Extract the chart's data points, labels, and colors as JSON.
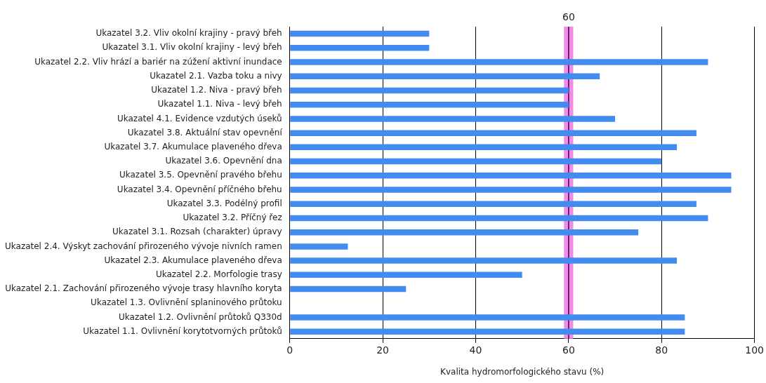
{
  "chart_data": {
    "type": "bar",
    "orientation": "horizontal",
    "xlabel": "Kvalita hydromorfologického stavu (%)",
    "categories": [
      "Ukazatel 3.2. Vliv okolní krajiny - pravý břeh",
      "Ukazatel 3.1. Vliv okolní krajiny - levý břeh",
      "Ukazatel 2.2. Vliv hrází a bariér na zúžení aktivní inundace",
      "Ukazatel 2.1. Vazba toku a nivy",
      "Ukazatel 1.2. Niva - pravý břeh",
      "Ukazatel 1.1. Niva - levý břeh",
      "Ukazatel 4.1. Evidence vzdutých úseků",
      "Ukazatel 3.8. Aktuální stav opevnění",
      "Ukazatel 3.7. Akumulace plaveného dřeva",
      "Ukazatel 3.6. Opevnění dna",
      "Ukazatel 3.5. Opevnění pravého břehu",
      "Ukazatel 3.4. Opevnění příčného břehu",
      "Ukazatel 3.3. Podélný profil",
      "Ukazatel 3.2. Příčný řez",
      "Ukazatel 3.1. Rozsah (charakter) úpravy",
      "Ukazatel 2.4. Výskyt zachování přirozeného vývoje nivních ramen",
      "Ukazatel 2.3. Akumulace plaveného dřeva",
      "Ukazatel 2.2. Morfologie trasy",
      "Ukazatel 2.1. Zachování přirozeného vývoje trasy hlavního koryta",
      "Ukazatel 1.3. Ovlivnění splaninového průtoku",
      "Ukazatel 1.2. Ovlivnění průtoků Q330d",
      "Ukazatel 1.1. Ovlivnění korytotvorných průtoků"
    ],
    "values": [
      30,
      30,
      90,
      66.7,
      60,
      60,
      70,
      87.5,
      83.3,
      80,
      95,
      95,
      87.5,
      90,
      75,
      12.5,
      83.3,
      50,
      25,
      null,
      85,
      85
    ],
    "color": "#428bef",
    "xlim": [
      0,
      100
    ],
    "xticks": [
      0,
      20,
      40,
      60,
      80,
      100
    ],
    "grid": "x",
    "legend": false,
    "bands": [
      {
        "axis": "x",
        "from": 59,
        "to": 61,
        "color": "#f08ce8"
      }
    ],
    "ref_lines": [
      {
        "axis": "x",
        "value": 60,
        "label": "60",
        "color": "#4a004a"
      }
    ]
  }
}
